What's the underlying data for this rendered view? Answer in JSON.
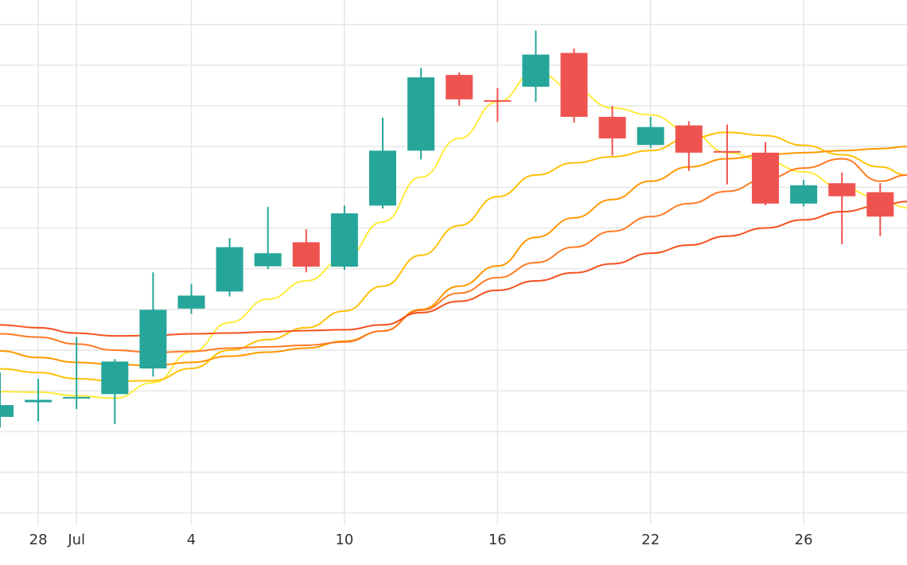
{
  "chart_data": {
    "type": "candlestick",
    "title": "",
    "xlabel": "",
    "ylabel": "",
    "xlim": [
      -0.5,
      23.2
    ],
    "ylim": [
      -0.3,
      12.6
    ],
    "x_ticks": [
      {
        "x": 0.5,
        "label": "28"
      },
      {
        "x": 1.5,
        "label": "Jul"
      },
      {
        "x": 4.5,
        "label": "4"
      },
      {
        "x": 8.5,
        "label": "10"
      },
      {
        "x": 12.5,
        "label": "16"
      },
      {
        "x": 16.5,
        "label": "22"
      },
      {
        "x": 20.5,
        "label": "26"
      }
    ],
    "y_gridlines": [
      0.0,
      1.0,
      2.0,
      3.0,
      4.0,
      5.0,
      6.0,
      7.0,
      8.0,
      9.0,
      10.0,
      11.0,
      12.0
    ],
    "grid": true,
    "up_color": "#26a69a",
    "down_color": "#ef5350",
    "candles": [
      {
        "x": -0.5,
        "open": 2.36,
        "high": 3.45,
        "low": 2.1,
        "close": 2.65
      },
      {
        "x": 0.5,
        "open": 2.72,
        "high": 3.3,
        "low": 2.25,
        "close": 2.78
      },
      {
        "x": 1.5,
        "open": 2.82,
        "high": 4.32,
        "low": 2.55,
        "close": 2.85
      },
      {
        "x": 2.5,
        "open": 2.92,
        "high": 3.78,
        "low": 2.18,
        "close": 3.72
      },
      {
        "x": 3.5,
        "open": 3.55,
        "high": 5.91,
        "low": 3.35,
        "close": 4.99
      },
      {
        "x": 4.5,
        "open": 5.02,
        "high": 5.62,
        "low": 4.89,
        "close": 5.34
      },
      {
        "x": 5.5,
        "open": 5.44,
        "high": 6.75,
        "low": 5.32,
        "close": 6.53
      },
      {
        "x": 6.5,
        "open": 6.06,
        "high": 7.52,
        "low": 5.99,
        "close": 6.38
      },
      {
        "x": 7.5,
        "open": 6.65,
        "high": 6.97,
        "low": 5.91,
        "close": 6.05
      },
      {
        "x": 8.5,
        "open": 6.05,
        "high": 7.55,
        "low": 5.97,
        "close": 7.36
      },
      {
        "x": 9.5,
        "open": 7.55,
        "high": 9.71,
        "low": 7.48,
        "close": 8.9
      },
      {
        "x": 10.5,
        "open": 8.9,
        "high": 10.93,
        "low": 8.68,
        "close": 10.7
      },
      {
        "x": 11.5,
        "open": 10.76,
        "high": 10.82,
        "low": 10.0,
        "close": 10.16
      },
      {
        "x": 12.5,
        "open": 10.14,
        "high": 10.44,
        "low": 9.61,
        "close": 10.11
      },
      {
        "x": 13.5,
        "open": 10.47,
        "high": 11.85,
        "low": 10.1,
        "close": 11.26
      },
      {
        "x": 14.5,
        "open": 11.3,
        "high": 11.41,
        "low": 9.59,
        "close": 9.73
      },
      {
        "x": 15.5,
        "open": 9.73,
        "high": 10.0,
        "low": 8.78,
        "close": 9.2
      },
      {
        "x": 16.5,
        "open": 9.04,
        "high": 9.73,
        "low": 8.97,
        "close": 9.48
      },
      {
        "x": 17.5,
        "open": 9.52,
        "high": 9.62,
        "low": 8.4,
        "close": 8.85
      },
      {
        "x": 18.5,
        "open": 8.89,
        "high": 9.54,
        "low": 8.07,
        "close": 8.87
      },
      {
        "x": 19.5,
        "open": 8.85,
        "high": 9.11,
        "low": 7.56,
        "close": 7.6
      },
      {
        "x": 20.5,
        "open": 7.6,
        "high": 8.18,
        "low": 7.53,
        "close": 8.05
      },
      {
        "x": 21.5,
        "open": 8.1,
        "high": 8.36,
        "low": 6.6,
        "close": 7.78
      },
      {
        "x": 22.5,
        "open": 7.88,
        "high": 8.1,
        "low": 6.8,
        "close": 7.28
      }
    ],
    "series": [
      {
        "color": "#ffeb3b",
        "values": [
          [
            -0.5,
            2.98
          ],
          [
            0.5,
            2.97
          ],
          [
            1.5,
            2.88
          ],
          [
            2.5,
            2.82
          ],
          [
            3.5,
            3.2
          ],
          [
            4.5,
            3.95
          ],
          [
            5.5,
            4.68
          ],
          [
            6.5,
            5.25
          ],
          [
            7.5,
            5.7
          ],
          [
            8.5,
            6.25
          ],
          [
            9.5,
            7.15
          ],
          [
            10.5,
            8.25
          ],
          [
            11.5,
            9.2
          ],
          [
            12.5,
            10.1
          ],
          [
            13.5,
            10.85
          ],
          [
            14.5,
            10.4
          ],
          [
            15.5,
            9.95
          ],
          [
            16.5,
            9.78
          ],
          [
            17.5,
            9.38
          ],
          [
            18.5,
            8.85
          ],
          [
            19.5,
            8.65
          ],
          [
            20.5,
            8.38
          ],
          [
            21.5,
            7.98
          ],
          [
            22.5,
            7.72
          ],
          [
            23.2,
            7.5
          ]
        ]
      },
      {
        "color": "#ffc107",
        "values": [
          [
            -0.5,
            3.54
          ],
          [
            0.5,
            3.45
          ],
          [
            1.5,
            3.3
          ],
          [
            2.5,
            3.24
          ],
          [
            3.5,
            3.25
          ],
          [
            4.5,
            3.55
          ],
          [
            5.5,
            4.0
          ],
          [
            6.5,
            4.26
          ],
          [
            7.5,
            4.55
          ],
          [
            8.5,
            4.96
          ],
          [
            9.5,
            5.57
          ],
          [
            10.5,
            6.33
          ],
          [
            11.5,
            7.06
          ],
          [
            12.5,
            7.77
          ],
          [
            13.5,
            8.3
          ],
          [
            14.5,
            8.6
          ],
          [
            15.5,
            8.75
          ],
          [
            16.5,
            8.9
          ],
          [
            17.5,
            9.2
          ],
          [
            18.5,
            9.35
          ],
          [
            19.5,
            9.27
          ],
          [
            20.5,
            9.03
          ],
          [
            21.5,
            8.8
          ],
          [
            22.5,
            8.5
          ],
          [
            23.2,
            8.3
          ]
        ]
      },
      {
        "color": "#ff9800",
        "values": [
          [
            -0.5,
            3.98
          ],
          [
            0.5,
            3.82
          ],
          [
            1.5,
            3.7
          ],
          [
            2.5,
            3.65
          ],
          [
            3.5,
            3.62
          ],
          [
            4.5,
            3.7
          ],
          [
            5.5,
            3.85
          ],
          [
            6.5,
            3.95
          ],
          [
            7.5,
            4.05
          ],
          [
            8.5,
            4.22
          ],
          [
            9.5,
            4.47
          ],
          [
            10.5,
            5.0
          ],
          [
            11.5,
            5.57
          ],
          [
            12.5,
            6.07
          ],
          [
            13.5,
            6.77
          ],
          [
            14.5,
            7.25
          ],
          [
            15.5,
            7.7
          ],
          [
            16.5,
            8.15
          ],
          [
            17.5,
            8.5
          ],
          [
            18.5,
            8.7
          ],
          [
            19.5,
            8.8
          ],
          [
            20.5,
            8.85
          ],
          [
            21.5,
            8.9
          ],
          [
            22.5,
            8.95
          ],
          [
            23.2,
            9.0
          ]
        ]
      },
      {
        "color": "#ff7b24",
        "values": [
          [
            -0.5,
            4.4
          ],
          [
            0.5,
            4.32
          ],
          [
            1.5,
            4.15
          ],
          [
            2.5,
            4.0
          ],
          [
            3.5,
            3.94
          ],
          [
            4.5,
            3.97
          ],
          [
            5.5,
            4.05
          ],
          [
            6.5,
            4.08
          ],
          [
            7.5,
            4.12
          ],
          [
            8.5,
            4.2
          ],
          [
            9.5,
            4.47
          ],
          [
            10.5,
            4.98
          ],
          [
            11.5,
            5.4
          ],
          [
            12.5,
            5.78
          ],
          [
            13.5,
            6.15
          ],
          [
            14.5,
            6.53
          ],
          [
            15.5,
            6.92
          ],
          [
            16.5,
            7.28
          ],
          [
            17.5,
            7.6
          ],
          [
            18.5,
            7.9
          ],
          [
            19.5,
            8.2
          ],
          [
            20.5,
            8.47
          ],
          [
            21.5,
            8.7
          ],
          [
            22.5,
            8.15
          ],
          [
            23.2,
            8.3
          ]
        ]
      },
      {
        "color": "#f4511e",
        "values": [
          [
            -0.5,
            4.62
          ],
          [
            0.5,
            4.55
          ],
          [
            1.5,
            4.42
          ],
          [
            2.5,
            4.35
          ],
          [
            3.5,
            4.36
          ],
          [
            4.5,
            4.4
          ],
          [
            5.5,
            4.42
          ],
          [
            6.5,
            4.45
          ],
          [
            7.5,
            4.48
          ],
          [
            8.5,
            4.5
          ],
          [
            9.5,
            4.62
          ],
          [
            10.5,
            4.92
          ],
          [
            11.5,
            5.2
          ],
          [
            12.5,
            5.47
          ],
          [
            13.5,
            5.7
          ],
          [
            14.5,
            5.9
          ],
          [
            15.5,
            6.12
          ],
          [
            16.5,
            6.38
          ],
          [
            17.5,
            6.58
          ],
          [
            18.5,
            6.8
          ],
          [
            19.5,
            7.0
          ],
          [
            20.5,
            7.2
          ],
          [
            21.5,
            7.4
          ],
          [
            22.5,
            7.55
          ],
          [
            23.2,
            7.65
          ]
        ]
      }
    ]
  }
}
